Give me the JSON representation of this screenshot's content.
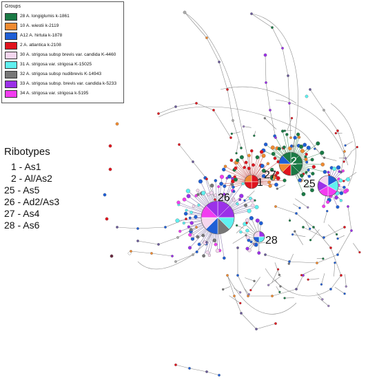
{
  "legend": {
    "title": "Groups",
    "items": [
      {
        "label": "28 A. longiglumis k-1861",
        "color": "#1a7a45"
      },
      {
        "label": "10 A. wiestii k-2119",
        "color": "#f08a30"
      },
      {
        "label": "A12 A. hirtula k-1878",
        "color": "#1f5fd6"
      },
      {
        "label": "2 A. atlantica k-2108",
        "color": "#e0141e"
      },
      {
        "label": "30 A. strigosa subsp brevis var. candida K-4460",
        "color": "#f4d6ee"
      },
      {
        "label": "31 A. strigosa var. strigosa K-15025",
        "color": "#5ff0f0"
      },
      {
        "label": "32 A. strigosa subsp nudibrevis K-14943",
        "color": "#777777"
      },
      {
        "label": "33 A. strigosa subsp. brevis var. candida k-5233",
        "color": "#9b30e8"
      },
      {
        "label": "34 A. strigosa var. strigosa k-5195",
        "color": "#f23cf0"
      }
    ]
  },
  "ribotypes": {
    "title": "Ribotypes",
    "items": [
      {
        "text": "1 - As1"
      },
      {
        "text": "2 - Al/As2"
      },
      {
        "text": "25 - As5"
      },
      {
        "text": "26 - Ad2/As3"
      },
      {
        "text": "27 - As4"
      },
      {
        "text": "28 - As6"
      }
    ]
  },
  "hubs": {
    "h2": "2",
    "h1": "1",
    "h27": "27",
    "h25": "25",
    "h26": "26",
    "h28": "28"
  }
}
